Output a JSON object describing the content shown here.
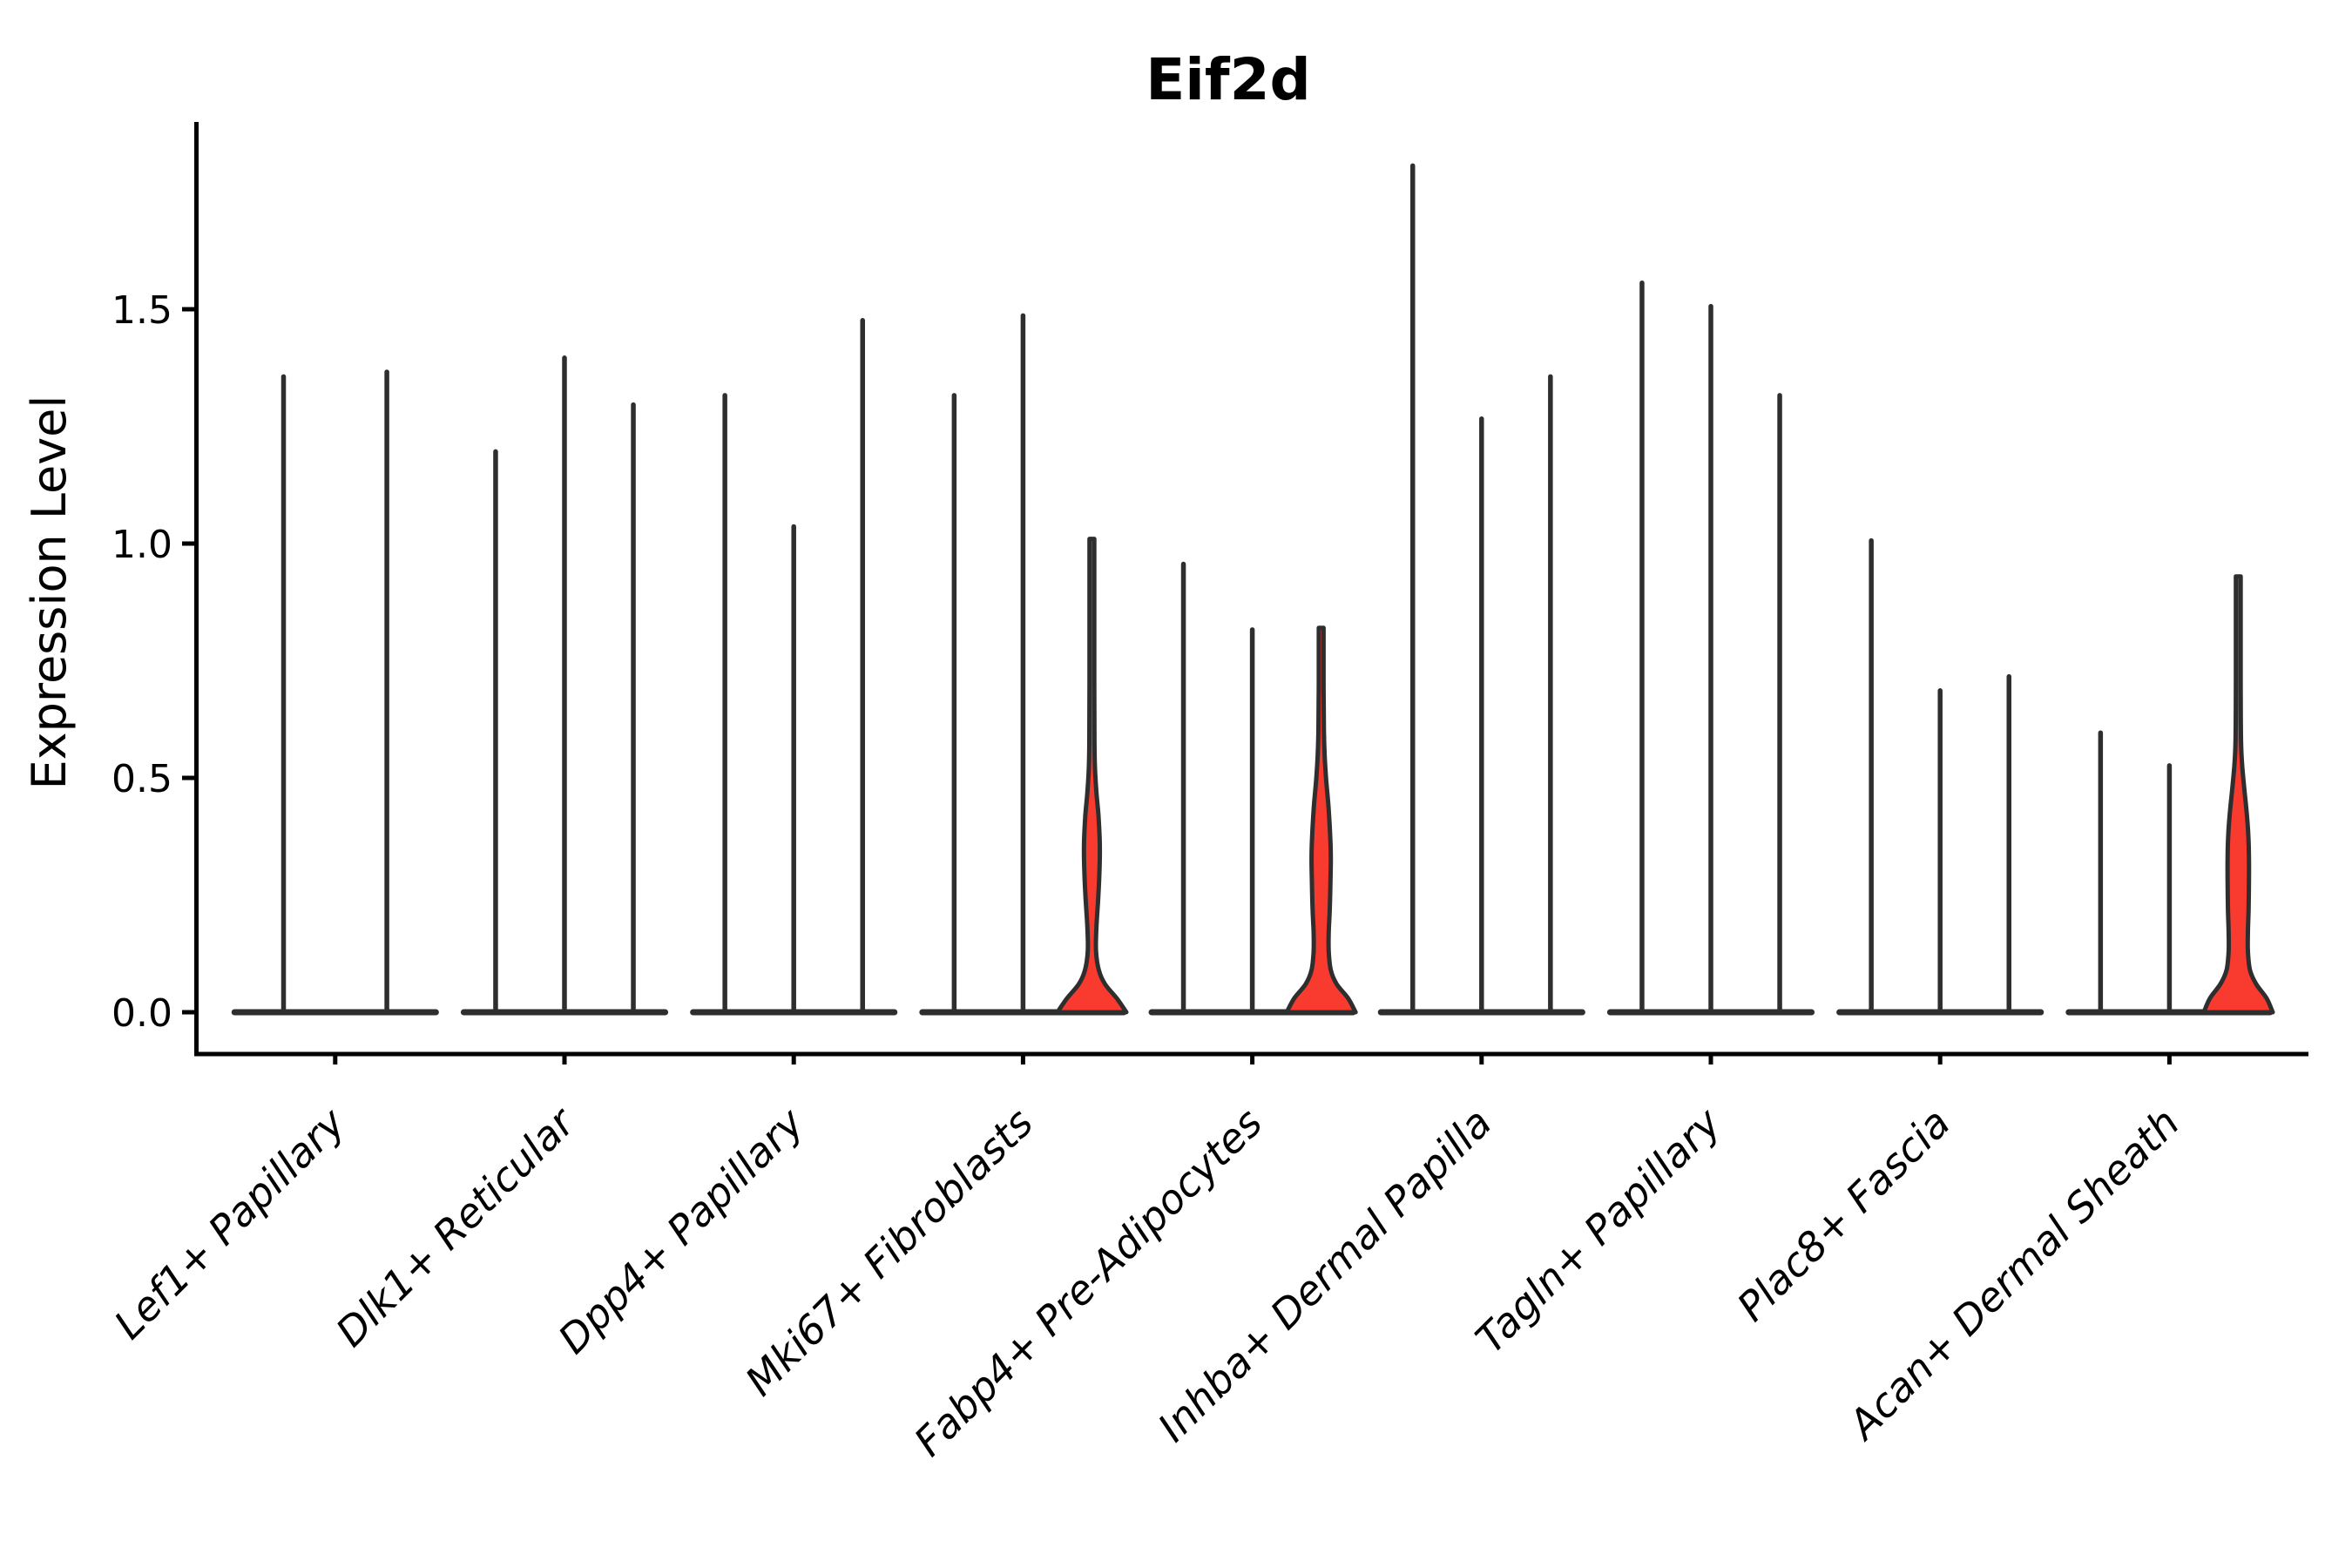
{
  "figure": {
    "title": "Eif2d",
    "y_axis_label": "Expression Level"
  },
  "chart_data": {
    "type": "violin",
    "title": "Eif2d",
    "xlabel": "",
    "ylabel": "Expression Level",
    "grid": false,
    "legend": "none",
    "background": "#ffffff",
    "ylim": [
      0,
      1.9
    ],
    "y_ticks": [
      "0.0",
      "0.5",
      "1.0",
      "1.5"
    ],
    "y_tick_values": [
      0,
      0.5,
      1.0,
      1.5
    ],
    "categories": [
      "Lef1+ Papillary",
      "Dlk1+ Reticular",
      "Dpp4+ Papillary",
      "Mki67+ Fibroblasts",
      "Fabp4+ Pre-Adipocytes",
      "Inhba+ Dermal Papilla",
      "Tagln+ Papillary",
      "Plac8+ Fascia",
      "Acan+ Dermal Sheath"
    ],
    "groups": [
      {
        "category": "Lef1+ Papillary",
        "violins": [
          {
            "max": 1.36,
            "highlight": false
          },
          {
            "max": 1.37,
            "highlight": false
          }
        ]
      },
      {
        "category": "Dlk1+ Reticular",
        "violins": [
          {
            "max": 1.2,
            "highlight": false
          },
          {
            "max": 1.4,
            "highlight": false
          },
          {
            "max": 1.3,
            "highlight": false
          }
        ]
      },
      {
        "category": "Dpp4+ Papillary",
        "violins": [
          {
            "max": 1.32,
            "highlight": false
          },
          {
            "max": 1.04,
            "highlight": false
          },
          {
            "max": 1.48,
            "highlight": false
          }
        ]
      },
      {
        "category": "Mki67+ Fibroblasts",
        "violins": [
          {
            "max": 1.32,
            "highlight": false
          },
          {
            "max": 1.49,
            "highlight": false
          },
          {
            "max": 1.01,
            "highlight": true,
            "profile": [
              [
                0,
                1.0
              ],
              [
                0.03,
                0.72
              ],
              [
                0.06,
                0.38
              ],
              [
                0.09,
                0.2
              ],
              [
                0.13,
                0.12
              ],
              [
                0.18,
                0.13
              ],
              [
                0.24,
                0.18
              ],
              [
                0.3,
                0.22
              ],
              [
                0.36,
                0.23
              ],
              [
                0.42,
                0.19
              ],
              [
                0.47,
                0.13
              ],
              [
                0.52,
                0.09
              ],
              [
                0.58,
                0.075
              ],
              [
                0.7,
                0.07
              ],
              [
                0.85,
                0.07
              ],
              [
                1.01,
                0.07
              ]
            ]
          }
        ]
      },
      {
        "category": "Fabp4+ Pre-Adipocytes",
        "violins": [
          {
            "max": 0.96,
            "highlight": false
          },
          {
            "max": 0.82,
            "highlight": false
          },
          {
            "max": 0.82,
            "highlight": true,
            "profile": [
              [
                0,
                1.0
              ],
              [
                0.03,
                0.78
              ],
              [
                0.06,
                0.45
              ],
              [
                0.09,
                0.28
              ],
              [
                0.13,
                0.22
              ],
              [
                0.17,
                0.22
              ],
              [
                0.22,
                0.25
              ],
              [
                0.28,
                0.27
              ],
              [
                0.33,
                0.28
              ],
              [
                0.38,
                0.26
              ],
              [
                0.44,
                0.21
              ],
              [
                0.5,
                0.14
              ],
              [
                0.55,
                0.1
              ],
              [
                0.6,
                0.08
              ],
              [
                0.7,
                0.07
              ],
              [
                0.82,
                0.07
              ]
            ]
          }
        ]
      },
      {
        "category": "Inhba+ Dermal Papilla",
        "violins": [
          {
            "max": 1.81,
            "highlight": false
          },
          {
            "max": 1.27,
            "highlight": false
          },
          {
            "max": 1.36,
            "highlight": false
          }
        ]
      },
      {
        "category": "Tagln+ Papillary",
        "violins": [
          {
            "max": 1.56,
            "highlight": false
          },
          {
            "max": 1.51,
            "highlight": false
          },
          {
            "max": 1.32,
            "highlight": false
          }
        ]
      },
      {
        "category": "Plac8+ Fascia",
        "violins": [
          {
            "max": 1.01,
            "highlight": false
          },
          {
            "max": 0.69,
            "highlight": false
          },
          {
            "max": 0.72,
            "highlight": false
          }
        ]
      },
      {
        "category": "Acan+ Dermal Sheath",
        "violins": [
          {
            "max": 0.6,
            "highlight": false
          },
          {
            "max": 0.53,
            "highlight": false
          },
          {
            "max": 0.93,
            "highlight": true,
            "profile": [
              [
                0,
                1.0
              ],
              [
                0.03,
                0.82
              ],
              [
                0.06,
                0.52
              ],
              [
                0.09,
                0.34
              ],
              [
                0.13,
                0.28
              ],
              [
                0.17,
                0.28
              ],
              [
                0.22,
                0.3
              ],
              [
                0.28,
                0.31
              ],
              [
                0.33,
                0.31
              ],
              [
                0.38,
                0.29
              ],
              [
                0.43,
                0.24
              ],
              [
                0.48,
                0.17
              ],
              [
                0.53,
                0.11
              ],
              [
                0.58,
                0.08
              ],
              [
                0.7,
                0.07
              ],
              [
                0.93,
                0.07
              ]
            ]
          }
        ]
      }
    ],
    "style": {
      "outline_color": "#2e2e2e",
      "highlight_fill": "#f93b2f",
      "axis_color": "#000000",
      "text_color": "#000000"
    }
  }
}
